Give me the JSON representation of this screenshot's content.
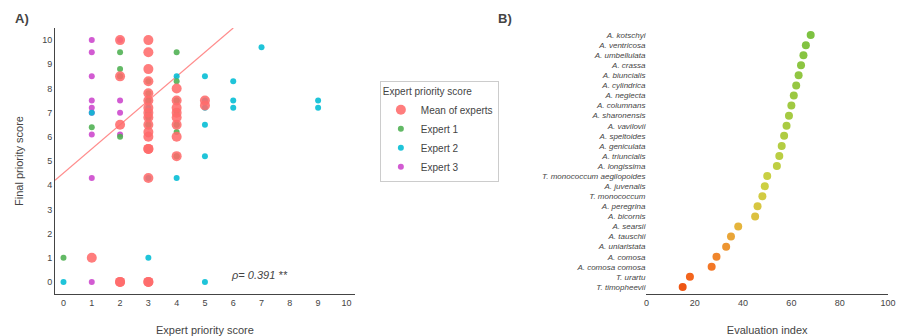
{
  "chart_data": [
    {
      "type": "scatter",
      "title": "A)",
      "x_label": "Expert priority score",
      "y_label": "Final priority score",
      "xlim": [
        -0.3,
        10.3
      ],
      "ylim": [
        -0.5,
        10.5
      ],
      "xticks": [
        0,
        1,
        2,
        3,
        4,
        5,
        6,
        7,
        8,
        9,
        10
      ],
      "yticks": [
        0,
        1,
        2,
        3,
        4,
        5,
        6,
        7,
        8,
        9,
        10
      ],
      "grid": false,
      "annotation": "ρ= 0.391 **",
      "legend": "right",
      "legend_title": "Expert priority score",
      "series": [
        {
          "type": "line",
          "color": "#FF7070",
          "x": [
            -0.3,
            6.0
          ],
          "values": [
            4.2,
            10.5
          ]
        },
        {
          "name": "Mean of experts",
          "color": "#FF6B6B",
          "marker": "circle",
          "x": [
            1,
            2,
            2,
            2,
            2,
            2,
            3,
            3,
            3,
            3,
            3,
            3,
            3,
            3,
            3,
            3,
            3,
            3,
            3,
            3,
            3,
            3,
            3,
            4,
            4,
            4,
            4,
            4,
            4,
            4,
            4,
            5,
            5
          ],
          "values": [
            1.0,
            0.0,
            0.0,
            6.5,
            8.5,
            10.0,
            0.0,
            0.0,
            4.3,
            5.5,
            5.5,
            6.0,
            6.2,
            6.5,
            6.8,
            7.0,
            7.2,
            7.5,
            7.8,
            8.3,
            8.8,
            9.5,
            10.0,
            5.2,
            6.0,
            6.5,
            6.8,
            7.0,
            7.2,
            7.5,
            8.0,
            7.3,
            7.5
          ]
        },
        {
          "name": "Expert 1",
          "color": "#4CAF50",
          "marker": "circle",
          "x": [
            0,
            1,
            2,
            2,
            2,
            2,
            3,
            3,
            3,
            3,
            3,
            3,
            3,
            3,
            4,
            4,
            4,
            4,
            4,
            4,
            4
          ],
          "values": [
            1.0,
            6.4,
            6.0,
            8.5,
            8.8,
            9.5,
            0.0,
            5.5,
            6.5,
            6.8,
            7.0,
            7.5,
            7.8,
            8.3,
            5.2,
            6.2,
            6.5,
            7.0,
            7.5,
            8.3,
            9.5
          ]
        },
        {
          "name": "Expert 2",
          "color": "#00BCD4",
          "marker": "circle",
          "x": [
            0,
            1,
            3,
            3,
            3,
            3,
            3,
            4,
            4,
            4,
            4,
            4,
            5,
            5,
            5,
            5,
            5,
            5,
            6,
            6,
            6,
            7,
            9,
            9
          ],
          "values": [
            0.0,
            7.0,
            1.0,
            4.3,
            6.5,
            7.0,
            7.2,
            4.3,
            5.2,
            6.5,
            7.5,
            8.5,
            0.0,
            5.2,
            6.5,
            7.2,
            7.5,
            8.5,
            7.2,
            7.5,
            8.3,
            9.7,
            7.2,
            7.5
          ]
        },
        {
          "name": "Expert 3",
          "color": "#CC44CC",
          "marker": "circle",
          "x": [
            1,
            1,
            1,
            1,
            1,
            1,
            1,
            1,
            1,
            2,
            2,
            2,
            2,
            2,
            3,
            3,
            3,
            3,
            3
          ],
          "values": [
            0.0,
            4.3,
            6.1,
            7.0,
            7.2,
            7.5,
            8.5,
            9.5,
            10.0,
            6.1,
            7.0,
            7.5,
            8.5,
            10.0,
            5.5,
            6.1,
            6.8,
            7.0,
            7.5
          ]
        }
      ]
    },
    {
      "type": "dot",
      "title": "B)",
      "x_label": "Evaluation index",
      "orientation": "horizontal",
      "xlim": [
        0,
        100
      ],
      "xticks": [
        0,
        20,
        40,
        60,
        80,
        100
      ],
      "grid": false,
      "categories": [
        "A. kotschyi",
        "A. ventricosa",
        "A. umbellulata",
        "A. crassa",
        "A. biuncialis",
        "A. cylindrica",
        "A. neglecta",
        "A. columnans",
        "A. sharonensis",
        "A. vavilovii",
        "A. speltoides",
        "A. geniculata",
        "A. triuncialis",
        "A. longissima",
        "T. monococcum aegilopoides",
        "A. juvenalis",
        "T. monococcum",
        "A. peregrina",
        "A. bicornis",
        "A. searsii",
        "A. tauschii",
        "A. uniaristata",
        "A. comosa",
        "A. comosa comosa",
        "T. urartu",
        "T. timopheevii"
      ],
      "values": [
        68,
        66,
        65,
        64,
        63,
        62,
        61,
        60,
        59,
        58,
        57,
        56,
        55,
        54,
        50,
        49,
        48,
        46,
        45,
        38,
        35,
        33,
        29,
        27,
        18,
        15
      ],
      "colors": [
        "#7DC241",
        "#82C341",
        "#87C441",
        "#8CC542",
        "#91C642",
        "#96C742",
        "#9BC842",
        "#A0C942",
        "#A5CA42",
        "#AACB42",
        "#AFCC43",
        "#B4CD43",
        "#BACE43",
        "#BFCF43",
        "#C9D044",
        "#CDD043",
        "#D2CB42",
        "#D7C641",
        "#DCC140",
        "#E5B43B",
        "#E9A537",
        "#ED9532",
        "#F0862C",
        "#F37726",
        "#F3651D",
        "#EE5613"
      ]
    }
  ]
}
